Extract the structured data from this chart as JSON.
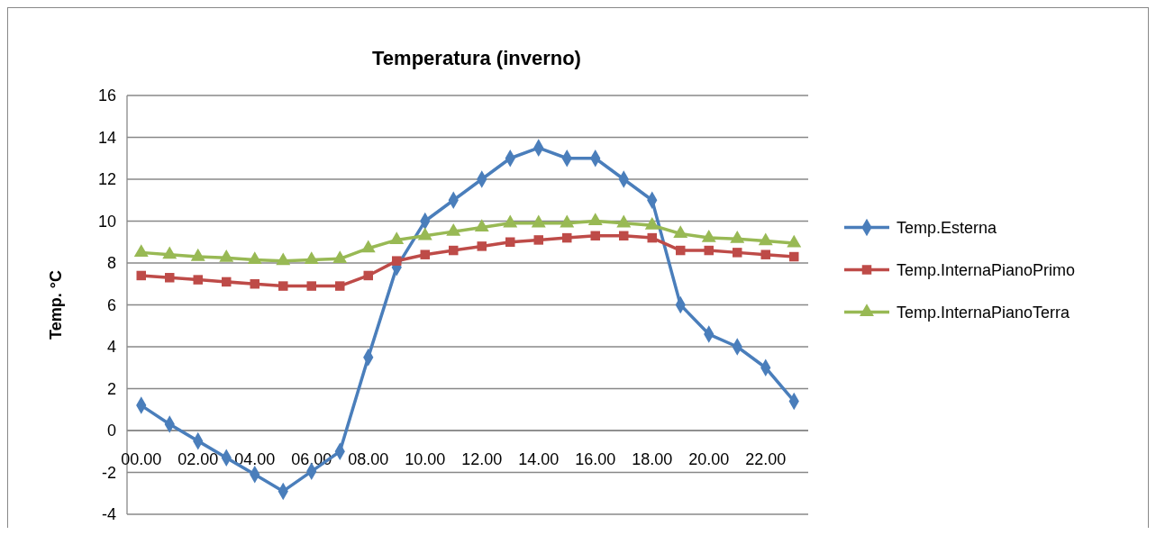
{
  "chart_data": {
    "type": "line",
    "title": "Temperatura (inverno)",
    "ylabel": "Temp. °C",
    "categories": [
      "00.00",
      null,
      "02.00",
      null,
      "04.00",
      null,
      "06.00",
      null,
      "08.00",
      null,
      "10.00",
      null,
      "12.00",
      null,
      "14.00",
      null,
      "16.00",
      null,
      "18.00",
      null,
      "20.00",
      null,
      "22.00",
      null
    ],
    "series": [
      {
        "name": "Temp.Esterna",
        "color": "#4a7ebb",
        "marker": "diamond",
        "values": [
          1.2,
          0.3,
          -0.5,
          -1.3,
          -2.1,
          -2.9,
          -1.95,
          -1.0,
          3.5,
          7.8,
          10,
          11,
          12,
          13,
          13.5,
          13,
          13,
          12,
          11,
          6,
          4.6,
          4,
          3,
          1.4
        ]
      },
      {
        "name": "Temp.InternaPianoPrimo",
        "color": "#be4b48",
        "marker": "square",
        "values": [
          7.4,
          7.3,
          7.2,
          7.1,
          7.0,
          6.9,
          6.9,
          6.9,
          7.4,
          8.1,
          8.4,
          8.6,
          8.8,
          9.0,
          9.1,
          9.2,
          9.3,
          9.3,
          9.2,
          8.6,
          8.6,
          8.5,
          8.4,
          8.3
        ]
      },
      {
        "name": "Temp.InternaPianoTerra",
        "color": "#98b954",
        "marker": "triangle",
        "values": [
          8.5,
          8.4,
          8.3,
          8.25,
          8.15,
          8.1,
          8.15,
          8.2,
          8.7,
          9.1,
          9.3,
          9.5,
          9.7,
          9.9,
          9.9,
          9.9,
          10.0,
          9.9,
          9.8,
          9.4,
          9.2,
          9.15,
          9.05,
          8.95
        ]
      }
    ],
    "ylim": [
      -4,
      16
    ],
    "yticks": [
      -4,
      -2,
      0,
      2,
      4,
      6,
      8,
      10,
      12,
      14,
      16
    ],
    "grid": "y",
    "legend": "right"
  }
}
